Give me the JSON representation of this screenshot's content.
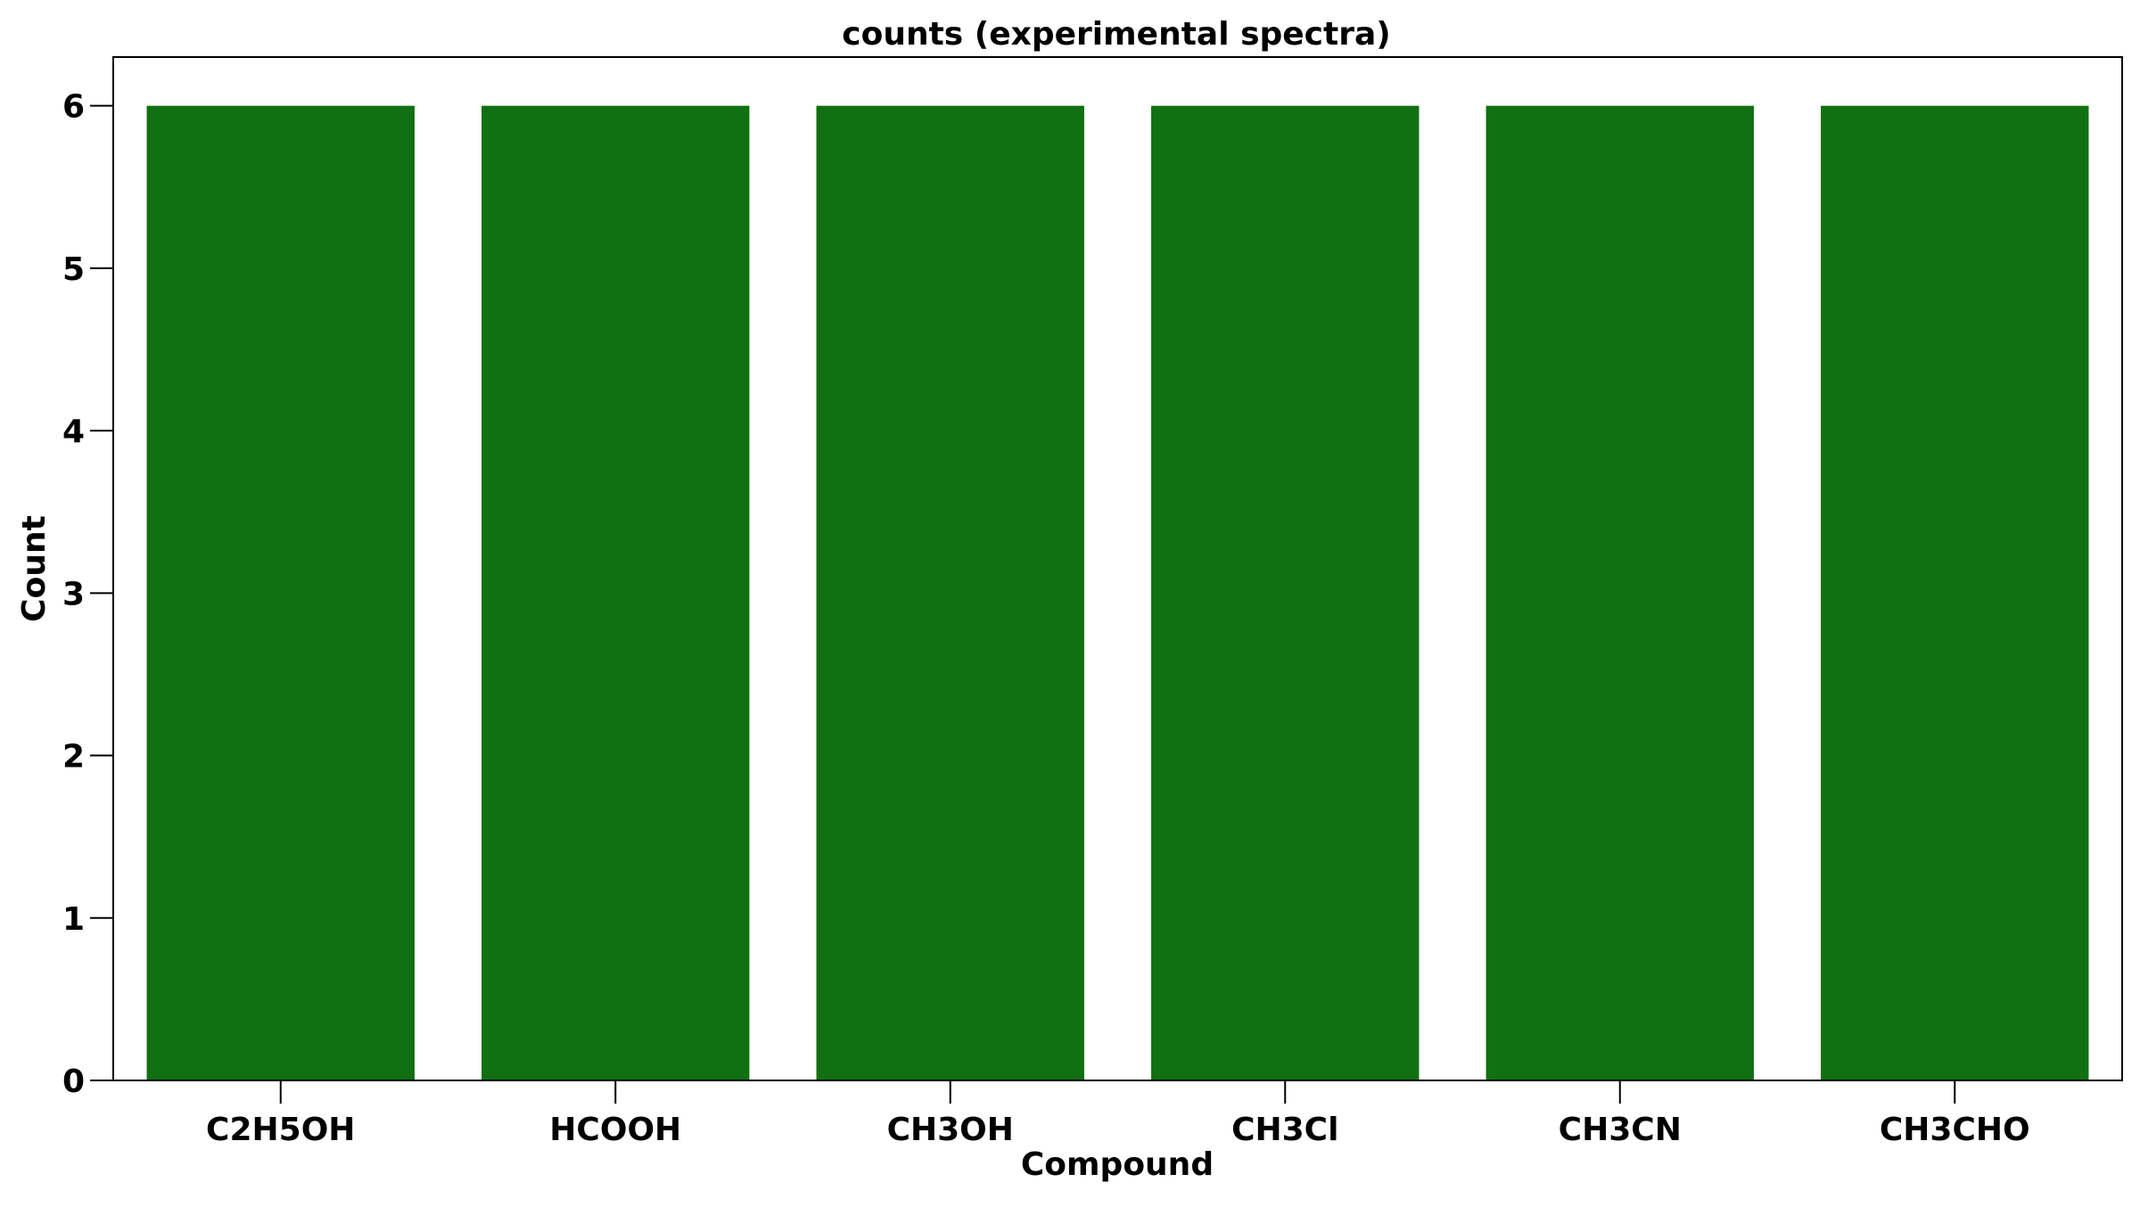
{
  "chart_data": {
    "type": "bar",
    "title": "counts (experimental spectra)",
    "xlabel": "Compound",
    "ylabel": "Count",
    "categories": [
      "C2H5OH",
      "HCOOH",
      "CH3OH",
      "CH3Cl",
      "CH3CN",
      "CH3CHO"
    ],
    "values": [
      6,
      6,
      6,
      6,
      6,
      6
    ],
    "ylim": [
      0,
      6.3
    ],
    "yticks": [
      0,
      1,
      2,
      3,
      4,
      5,
      6
    ],
    "bar_color": "#117011",
    "grid": false,
    "legend": "none"
  }
}
